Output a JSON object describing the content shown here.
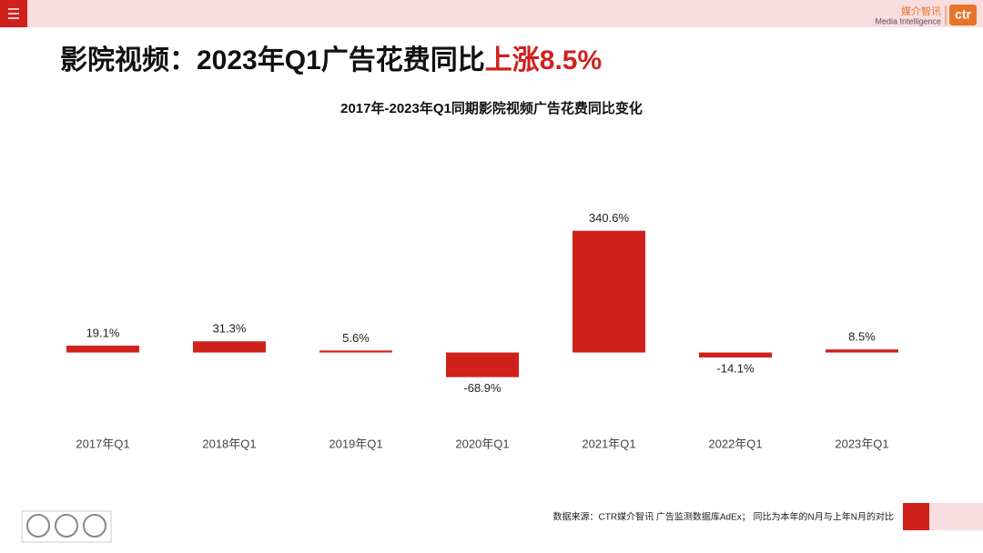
{
  "header": {
    "logo_cn": "媒介智讯",
    "logo_en": "Media Intelligence",
    "logo_mark": "ctr"
  },
  "headline": {
    "prefix": "影院视频：2023年Q1广告花费同比",
    "highlight": "上涨8.5%"
  },
  "chart_data": {
    "type": "bar",
    "title": "2017年-2023年Q1同期影院视频广告花费同比变化",
    "categories": [
      "2017年Q1",
      "2018年Q1",
      "2019年Q1",
      "2020年Q1",
      "2021年Q1",
      "2022年Q1",
      "2023年Q1"
    ],
    "values": [
      19.1,
      31.3,
      5.6,
      -68.9,
      340.6,
      -14.1,
      8.5
    ],
    "value_labels": [
      "19.1%",
      "31.3%",
      "5.6%",
      "-68.9%",
      "340.6%",
      "-14.1%",
      "8.5%"
    ],
    "color": "#d0211c",
    "ylim": [
      -80,
      350
    ],
    "grid": false
  },
  "footer": {
    "source": "数据来源：CTR媒介智讯 广告监测数据库AdEx； 同比为本年的N月与上年N月的对比"
  }
}
